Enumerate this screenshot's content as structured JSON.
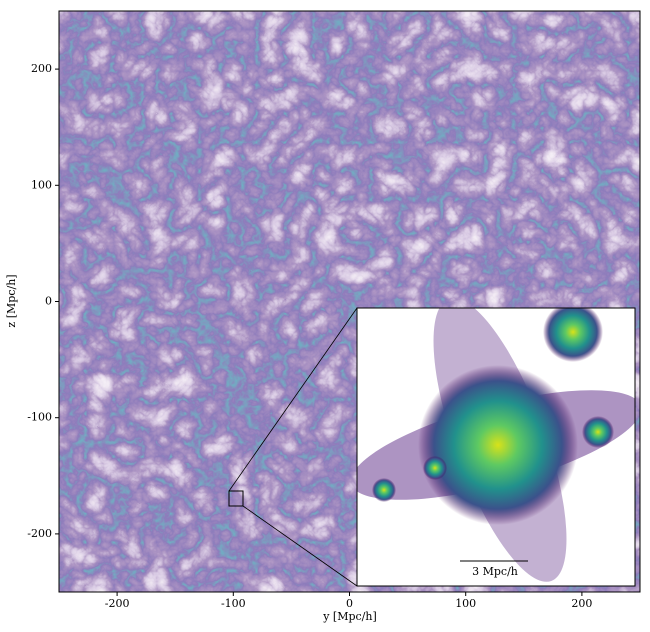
{
  "chart_data": {
    "type": "image",
    "xlabel": "y [Mpc/h]",
    "ylabel": "z [Mpc/h]",
    "xlim": [
      -250,
      250
    ],
    "ylim": [
      -250,
      250
    ],
    "xticks": [
      -200,
      -100,
      0,
      100,
      200
    ],
    "yticks": [
      -200,
      -100,
      0,
      100,
      200
    ],
    "inset_scale_label": "3 Mpc/h"
  }
}
